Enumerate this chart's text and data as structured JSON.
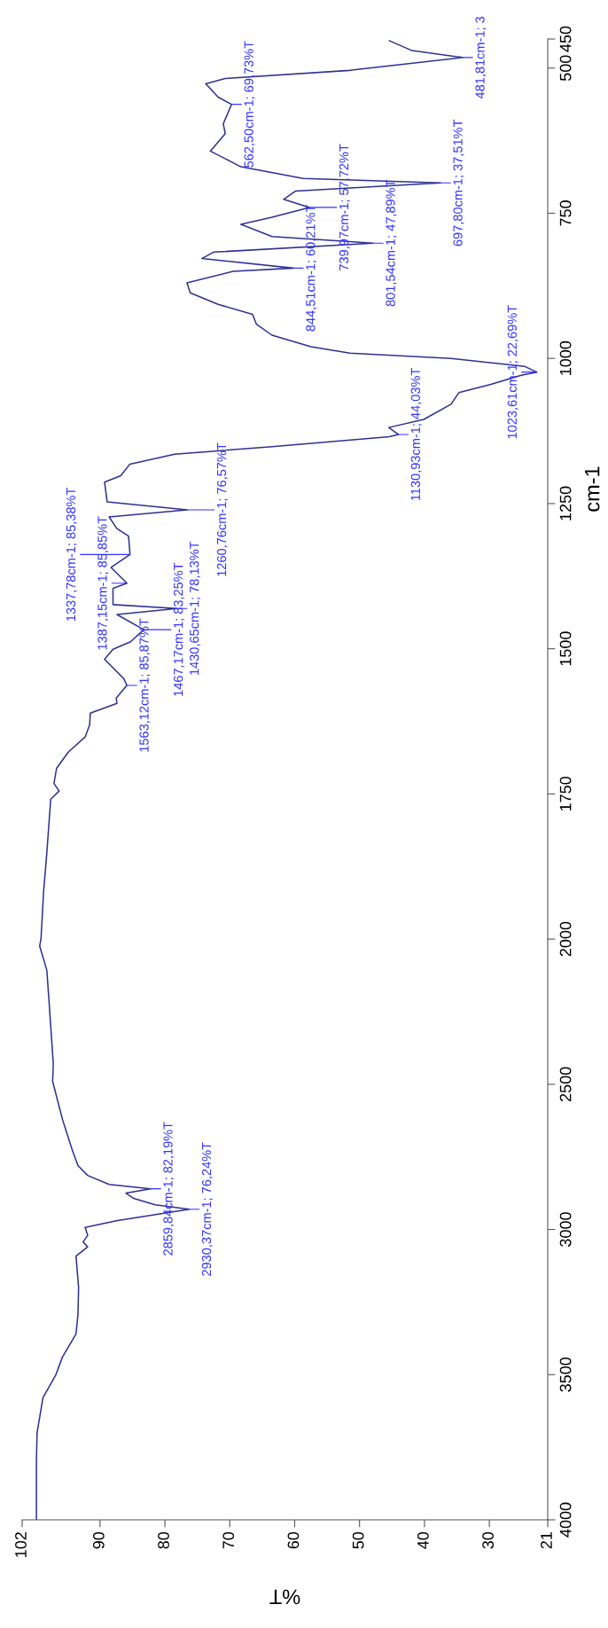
{
  "chart_data": [
    {
      "type": "line",
      "orientation": "horizontal",
      "ylabel": "cm-1",
      "xlim": [
        102,
        21
      ],
      "ylim": [
        2000,
        450
      ],
      "yticks": [
        1750,
        1500,
        1250,
        1000,
        750,
        500,
        450
      ],
      "tick_labels": "y",
      "grid": false,
      "legend": false,
      "marker": "none",
      "line_style": "solid",
      "series": [
        {
          "color": "#2e3192",
          "x": [
            2000,
            1919,
            1852,
            1759,
            1745,
            1732,
            1706,
            1678,
            1652,
            1631,
            1611,
            1594,
            1585,
            1563.12,
            1552,
            1518,
            1501,
            1488,
            1467.17,
            1441,
            1430.65,
            1424,
            1396,
            1387.15,
            1360,
            1337.78,
            1306,
            1293,
            1273,
            1260.76,
            1247,
            1213,
            1202,
            1182,
            1165,
            1152,
            1135,
            1130.93,
            1119,
            1105,
            1079,
            1059,
            1045,
            1029,
            1023.61,
            1014,
            1000,
            991,
            980,
            960,
            941,
            924,
            907,
            887,
            870,
            850,
            844.51,
            828,
            817,
            801.54,
            790,
            769,
            757,
            739.97,
            726,
            712,
            697.8,
            690,
            670,
            643,
            613,
            596,
            562.5,
            550,
            527,
            518,
            504,
            481.81,
            470,
            453
          ],
          "values": [
            99.1,
            98.7,
            98.2,
            97.6,
            96.3,
            97.1,
            96.7,
            94.9,
            92.3,
            91.6,
            91.5,
            87.4,
            87.5,
            85.87,
            86.3,
            89.3,
            88.0,
            85.3,
            83.25,
            87.4,
            78.13,
            88.0,
            88.0,
            85.85,
            88.3,
            85.38,
            85.6,
            87.4,
            88.6,
            76.57,
            88.9,
            89.3,
            86.8,
            85.4,
            78.5,
            63.5,
            45.4,
            44.03,
            45.5,
            40.1,
            35.9,
            34.7,
            29.9,
            25.1,
            22.69,
            24.5,
            35.9,
            51.5,
            57.5,
            63.5,
            65.9,
            66.5,
            71.8,
            76.1,
            76.6,
            69.5,
            60.21,
            74.3,
            72.5,
            47.89,
            63.5,
            68.3,
            63.5,
            57.72,
            61.7,
            59.9,
            37.51,
            58.7,
            68.3,
            73.0,
            70.7,
            71.0,
            69.73,
            71.8,
            73.7,
            70.7,
            51.5,
            34.1,
            41.9,
            45.4
          ]
        }
      ],
      "annotations": [
        {
          "text": "1563,12cm-1; 85,87%T",
          "x": 85.87,
          "y": 1563.12
        },
        {
          "text": "1467,17cm-1; 83,25%T",
          "x": 83.25,
          "y": 1467.17
        },
        {
          "text": "1430,65cm-1; 78,13%T",
          "x": 78.13,
          "y": 1430.65
        },
        {
          "text": "1387,15cm-1; 85,85%T",
          "x": 85.85,
          "y": 1387.15
        },
        {
          "text": "1337,78cm-1; 85,38%T",
          "x": 85.38,
          "y": 1337.78
        },
        {
          "text": "1260,76cm-1; 76,57%T",
          "x": 76.57,
          "y": 1260.76
        },
        {
          "text": "1130,93cm-1; 44,03%T",
          "x": 44.03,
          "y": 1130.93
        },
        {
          "text": "1023,61cm-1; 22,69%T",
          "x": 22.69,
          "y": 1023.61
        },
        {
          "text": "844,51cm-1; 60,21%T",
          "x": 60.21,
          "y": 844.51
        },
        {
          "text": "801,54cm-1; 47,89%T",
          "x": 47.89,
          "y": 801.54
        },
        {
          "text": "739,97cm-1; 57,72%T",
          "x": 57.72,
          "y": 739.97
        },
        {
          "text": "697,80cm-1; 37,51%T",
          "x": 37.51,
          "y": 697.8
        },
        {
          "text": "562,50cm-1; 69,73%T",
          "x": 69.73,
          "y": 562.5
        },
        {
          "text": "481,81cm-1; 3",
          "x": 34.1,
          "y": 481.81
        }
      ]
    },
    {
      "type": "line",
      "orientation": "horizontal",
      "xlabel": "%T",
      "xlim": [
        102,
        21
      ],
      "ylim": [
        4000,
        2000
      ],
      "xticks": [
        102,
        90,
        80,
        70,
        60,
        50,
        40,
        30,
        21
      ],
      "yticks": [
        4000,
        3500,
        3000,
        2500,
        2000
      ],
      "grid": false,
      "legend": false,
      "marker": "none",
      "line_style": "solid",
      "series": [
        {
          "color": "#2e3192",
          "x": [
            4000,
            3800,
            3700,
            3580,
            3500,
            3440,
            3360,
            3293,
            3200,
            3092,
            3060,
            3043,
            3020,
            2993,
            2970,
            2930.37,
            2915,
            2893,
            2875,
            2859.84,
            2845,
            2814,
            2780,
            2725,
            2620,
            2490,
            2428,
            2300,
            2200,
            2107,
            2024,
            2000
          ],
          "values": [
            99.8,
            99.8,
            99.7,
            98.8,
            96.8,
            95.8,
            93.7,
            93.4,
            93.3,
            93.7,
            91.9,
            92.6,
            91.9,
            92.3,
            87.5,
            76.24,
            81.5,
            84.8,
            86.0,
            82.19,
            88.6,
            91.9,
            93.4,
            94.3,
            95.8,
            97.3,
            97.2,
            97.6,
            97.9,
            98.2,
            99.3,
            99.1
          ]
        }
      ],
      "annotations": [
        {
          "text": "2930,37cm-1; 76,24%T",
          "x": 76.24,
          "y": 2930.37
        },
        {
          "text": "2859,84cm-1; 82,19%T",
          "x": 82.19,
          "y": 2859.84
        }
      ]
    }
  ]
}
